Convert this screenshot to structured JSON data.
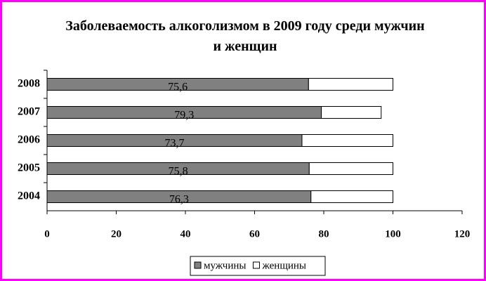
{
  "chart_data": {
    "type": "stacked-barh",
    "title": "Заболеваемость алкоголизмом в 2009 году среди мужчин и женщин",
    "categories": [
      "2008",
      "2007",
      "2006",
      "2005",
      "2004"
    ],
    "series": [
      {
        "name": "мужчины",
        "color": "#808080",
        "values": [
          75.6,
          79.3,
          73.7,
          75.8,
          76.3
        ],
        "value_labels": [
          "75,6",
          "79,3",
          "73,7",
          "75,8",
          "76,3"
        ]
      },
      {
        "name": "женщины",
        "color": "#ffffff",
        "values": [
          24.4,
          17.3,
          26.3,
          24.2,
          23.7
        ]
      }
    ],
    "xlim": [
      0,
      120
    ],
    "xticks": [
      0,
      20,
      40,
      60,
      80,
      100,
      120
    ],
    "legend": "bottom"
  }
}
